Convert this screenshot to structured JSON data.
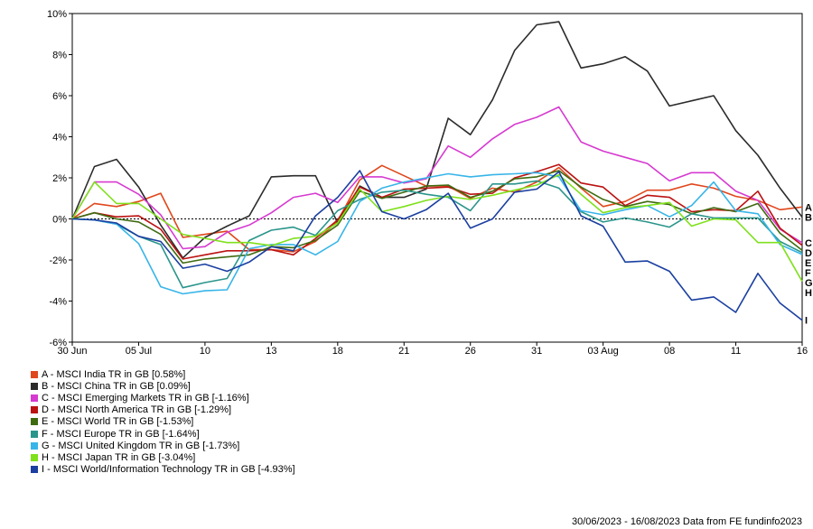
{
  "chart_data": {
    "type": "line",
    "x": [
      "30 Jun",
      "03 Jul",
      "04 Jul",
      "05 Jul",
      "06 Jul",
      "07 Jul",
      "10 Jul",
      "11 Jul",
      "12 Jul",
      "13 Jul",
      "14 Jul",
      "17 Jul",
      "18 Jul",
      "19 Jul",
      "20 Jul",
      "21 Jul",
      "24 Jul",
      "25 Jul",
      "26 Jul",
      "27 Jul",
      "28 Jul",
      "31 Jul",
      "01 Aug",
      "02 Aug",
      "03 Aug",
      "04 Aug",
      "07 Aug",
      "08 Aug",
      "09 Aug",
      "10 Aug",
      "11 Aug",
      "14 Aug",
      "15 Aug",
      "16 Aug"
    ],
    "x_ticks": [
      {
        "index": 0,
        "label": "30 Jun"
      },
      {
        "index": 3,
        "label": "05 Jul"
      },
      {
        "index": 6,
        "label": "10"
      },
      {
        "index": 9,
        "label": "13"
      },
      {
        "index": 12,
        "label": "18"
      },
      {
        "index": 15,
        "label": "21"
      },
      {
        "index": 18,
        "label": "26"
      },
      {
        "index": 21,
        "label": "31"
      },
      {
        "index": 24,
        "label": "03 Aug"
      },
      {
        "index": 27,
        "label": "08"
      },
      {
        "index": 30,
        "label": "11"
      },
      {
        "index": 33,
        "label": "16"
      }
    ],
    "ylim": [
      -6,
      10
    ],
    "y_ticks": [
      "-6%",
      "-4%",
      "-2%",
      "0%",
      "2%",
      "4%",
      "6%",
      "8%",
      "10%"
    ],
    "y_tick_values": [
      -6,
      -4,
      -2,
      0,
      2,
      4,
      6,
      8,
      10
    ],
    "grid": false,
    "legend_position": "bottom-left",
    "series": [
      {
        "letter": "A",
        "name": "A - MSCI India TR in GB [0.58%]",
        "color": "#e0471c",
        "values": [
          0.0,
          0.75,
          0.6,
          0.85,
          1.25,
          -0.9,
          -0.75,
          -0.6,
          -1.5,
          -1.5,
          -1.6,
          -1.1,
          -0.1,
          1.9,
          2.6,
          2.1,
          1.6,
          1.6,
          1.0,
          1.5,
          1.3,
          1.8,
          2.5,
          1.5,
          0.6,
          0.85,
          1.4,
          1.4,
          1.7,
          1.5,
          1.1,
          0.9,
          0.45,
          0.58
        ]
      },
      {
        "letter": "B",
        "name": "B - MSCI China TR in GB [0.09%]",
        "color": "#2b2b2b",
        "values": [
          0.0,
          2.55,
          2.9,
          1.55,
          -0.3,
          -1.9,
          -0.9,
          -0.35,
          0.15,
          2.05,
          2.1,
          2.1,
          -0.2,
          1.6,
          1.05,
          1.05,
          1.45,
          4.9,
          4.1,
          5.8,
          8.2,
          9.45,
          9.6,
          7.35,
          7.55,
          7.9,
          7.2,
          5.5,
          5.75,
          6.0,
          4.3,
          3.1,
          1.5,
          0.09
        ]
      },
      {
        "letter": "C",
        "name": "C - MSCI Emerging Markets TR in GB [-1.16%]",
        "color": "#d63ad0",
        "values": [
          0.0,
          1.8,
          1.8,
          1.2,
          0.2,
          -1.45,
          -1.35,
          -0.65,
          -0.3,
          0.3,
          1.05,
          1.25,
          0.8,
          2.05,
          2.05,
          1.75,
          1.95,
          3.55,
          3.0,
          3.9,
          4.6,
          4.95,
          5.45,
          3.75,
          3.3,
          3.0,
          2.7,
          1.85,
          2.25,
          2.25,
          1.35,
          0.9,
          -0.5,
          -1.16
        ]
      },
      {
        "letter": "D",
        "name": "D - MSCI North America TR in GB [-1.29%]",
        "color": "#bb1212",
        "values": [
          0.0,
          0.3,
          0.1,
          0.15,
          -0.5,
          -1.95,
          -1.75,
          -1.55,
          -1.55,
          -1.5,
          -1.75,
          -0.95,
          -0.05,
          1.55,
          1.05,
          1.45,
          1.5,
          1.55,
          1.2,
          1.25,
          2.0,
          2.3,
          2.65,
          1.75,
          1.55,
          0.65,
          1.15,
          1.05,
          0.35,
          0.45,
          0.4,
          1.35,
          -0.45,
          -1.29
        ]
      },
      {
        "letter": "E",
        "name": "E - MSCI World TR in GB [-1.53%]",
        "color": "#3f6b10",
        "values": [
          0.0,
          0.3,
          0.0,
          -0.15,
          -0.75,
          -2.15,
          -1.95,
          -1.85,
          -1.75,
          -1.35,
          -1.4,
          -1.05,
          -0.3,
          1.35,
          1.0,
          1.3,
          1.6,
          1.65,
          1.05,
          1.35,
          1.95,
          2.05,
          2.35,
          1.55,
          0.95,
          0.6,
          0.85,
          0.7,
          0.25,
          0.55,
          0.35,
          0.75,
          -0.7,
          -1.53
        ]
      },
      {
        "letter": "F",
        "name": "F - MSCI Europe TR in GB [-1.64%]",
        "color": "#2a958b",
        "values": [
          0.0,
          -0.05,
          -0.25,
          -0.85,
          -1.25,
          -3.35,
          -3.1,
          -2.9,
          -1.05,
          -0.55,
          -0.4,
          -0.8,
          0.4,
          0.95,
          1.3,
          1.4,
          1.2,
          1.05,
          0.4,
          1.7,
          1.7,
          1.85,
          1.5,
          0.35,
          -0.15,
          0.05,
          -0.15,
          -0.4,
          0.25,
          0.05,
          0.05,
          0.05,
          -1.1,
          -1.64
        ]
      },
      {
        "letter": "G",
        "name": "G - MSCI United Kingdom TR in GB [-1.73%]",
        "color": "#37b5e8",
        "values": [
          0.0,
          -0.05,
          -0.25,
          -1.2,
          -3.3,
          -3.65,
          -3.5,
          -3.45,
          -1.45,
          -1.25,
          -1.25,
          -1.75,
          -1.1,
          0.85,
          1.5,
          1.8,
          2.0,
          2.2,
          2.05,
          2.15,
          2.2,
          2.25,
          2.05,
          0.4,
          0.2,
          0.45,
          0.65,
          0.1,
          0.65,
          1.8,
          0.4,
          0.25,
          -1.25,
          -1.73
        ]
      },
      {
        "letter": "H",
        "name": "H - MSCI Japan TR in GB [-3.04%]",
        "color": "#7fe01c",
        "values": [
          0.0,
          1.8,
          0.75,
          0.75,
          0.0,
          -0.75,
          -0.95,
          -1.15,
          -1.15,
          -1.3,
          -0.95,
          -0.85,
          -0.2,
          1.45,
          0.35,
          0.6,
          0.9,
          1.1,
          0.95,
          1.15,
          1.4,
          1.65,
          2.15,
          1.2,
          0.3,
          0.55,
          0.65,
          0.8,
          -0.35,
          0.0,
          -0.05,
          -1.15,
          -1.15,
          -3.04
        ]
      },
      {
        "letter": "I",
        "name": "I - MSCI World/Information Technology TR in GB [-4.93%]",
        "color": "#1a3fa0",
        "values": [
          0.0,
          -0.05,
          -0.2,
          -0.85,
          -1.1,
          -2.4,
          -2.2,
          -2.55,
          -2.1,
          -1.35,
          -1.55,
          0.15,
          1.05,
          2.35,
          0.35,
          0.0,
          0.45,
          1.25,
          -0.45,
          0.0,
          1.3,
          1.45,
          2.3,
          0.15,
          -0.35,
          -2.1,
          -2.05,
          -2.55,
          -3.95,
          -3.8,
          -4.55,
          -2.65,
          -4.1,
          -4.93
        ]
      }
    ]
  },
  "footer_text": "30/06/2023 - 16/08/2023 Data from FE fundinfo2023"
}
